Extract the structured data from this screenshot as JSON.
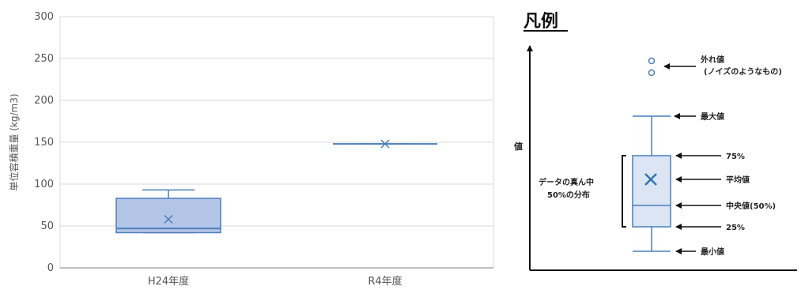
{
  "chart_data": {
    "type": "box",
    "ylabel": "単位容積重量 (kg/m3)",
    "ylim": [
      0,
      300
    ],
    "yticks": [
      0,
      50,
      100,
      150,
      200,
      250,
      300
    ],
    "grid": true,
    "categories": [
      "H24年度",
      "R4年度"
    ],
    "boxes": [
      {
        "category": "H24年度",
        "min": 42,
        "q1": 42,
        "median": 47,
        "q3": 83,
        "max": 93,
        "mean": 58
      },
      {
        "category": "R4年度",
        "min": 148,
        "q1": 148,
        "median": 148,
        "q3": 148,
        "max": 148,
        "mean": 148
      }
    ],
    "colors": {
      "box_fill": "#b4c6e7",
      "box_stroke": "#4a7ebb",
      "grid": "#d9d9d9",
      "axis": "#7f7f7f"
    }
  },
  "legend": {
    "title": "凡例",
    "value_axis": "値",
    "outliers_line1": "外れ値",
    "outliers_line2": "(ノイズのようなもの)",
    "max": "最大値",
    "q3": "75%",
    "mean": "平均値",
    "median": "中央値(50%)",
    "q1": "25%",
    "min": "最小値",
    "middle_line1": "データの真ん中",
    "middle_line2": "50%の分布"
  }
}
